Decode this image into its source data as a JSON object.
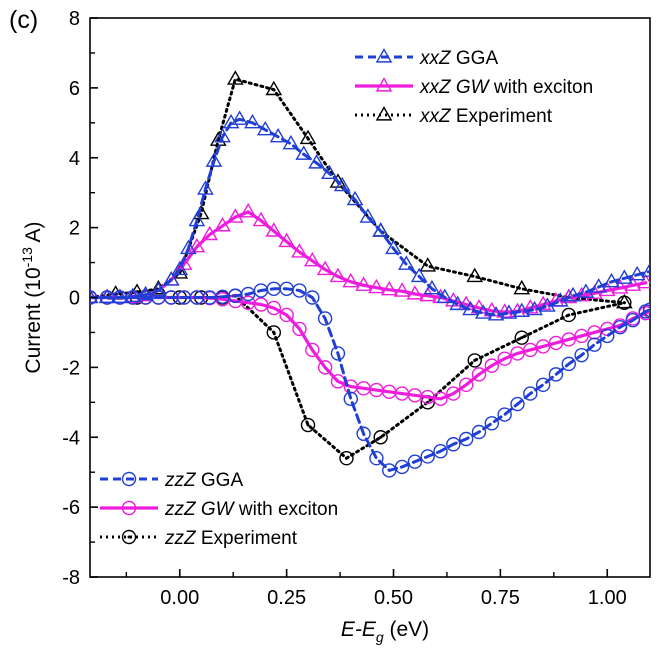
{
  "chart_data": {
    "type": "line",
    "panel_label": "(c)",
    "xlabel": {
      "base": "E",
      "dash": "-E",
      "sub": "g",
      "unit": " (eV)"
    },
    "ylabel": {
      "prefix": "Current (10",
      "exp": "-13",
      "suffix": " A)"
    },
    "xlim": [
      -0.21,
      1.1
    ],
    "ylim": [
      -8,
      8
    ],
    "xticks": [
      0.0,
      0.25,
      0.5,
      0.75,
      1.0
    ],
    "xtick_labels": [
      "0.00",
      "0.25",
      "0.50",
      "0.75",
      "1.00"
    ],
    "yticks": [
      -8,
      -6,
      -4,
      -2,
      0,
      2,
      4,
      6,
      8
    ],
    "ytick_labels": [
      "-8",
      "-6",
      "-4",
      "-2",
      "0",
      "2",
      "4",
      "6",
      "8"
    ],
    "legend_top": "top-right",
    "legend_bottom": "bottom-left",
    "series": [
      {
        "id": "xx-gga",
        "group": "top",
        "name_italic": "xxZ",
        "name_rest": " GGA",
        "name_rest_italic": "",
        "name_tail": "",
        "color": "#1f3fd6",
        "dash": "8,5",
        "marker": "triangle",
        "width": 3,
        "x": [
          -0.21,
          -0.17,
          -0.14,
          -0.11,
          -0.08,
          -0.05,
          -0.02,
          0.0,
          0.02,
          0.04,
          0.06,
          0.08,
          0.1,
          0.12,
          0.14,
          0.17,
          0.2,
          0.23,
          0.26,
          0.29,
          0.32,
          0.35,
          0.38,
          0.41,
          0.44,
          0.47,
          0.5,
          0.53,
          0.56,
          0.59,
          0.62,
          0.65,
          0.68,
          0.71,
          0.74,
          0.77,
          0.8,
          0.83,
          0.86,
          0.89,
          0.92,
          0.95,
          0.98,
          1.01,
          1.04,
          1.07,
          1.1
        ],
        "y": [
          0.0,
          0.0,
          0.0,
          0.03,
          0.08,
          0.2,
          0.5,
          0.8,
          1.4,
          2.2,
          3.1,
          3.9,
          4.6,
          5.0,
          5.1,
          5.0,
          4.8,
          4.6,
          4.4,
          4.1,
          3.85,
          3.55,
          3.2,
          2.8,
          2.3,
          1.9,
          1.4,
          0.95,
          0.6,
          0.25,
          0.0,
          -0.2,
          -0.35,
          -0.45,
          -0.5,
          -0.45,
          -0.4,
          -0.35,
          -0.25,
          -0.1,
          0.05,
          0.15,
          0.3,
          0.45,
          0.55,
          0.65,
          0.75
        ]
      },
      {
        "id": "xx-gw",
        "group": "top",
        "name_italic": "xxZ",
        "name_rest": " ",
        "name_rest_italic": "GW",
        "name_tail": " with exciton",
        "color": "#ee1cdc",
        "dash": "",
        "marker": "triangle",
        "width": 3.2,
        "x": [
          -0.21,
          -0.17,
          -0.14,
          -0.11,
          -0.08,
          -0.05,
          -0.02,
          0.01,
          0.04,
          0.07,
          0.1,
          0.13,
          0.16,
          0.19,
          0.22,
          0.25,
          0.28,
          0.31,
          0.34,
          0.37,
          0.4,
          0.43,
          0.46,
          0.49,
          0.52,
          0.55,
          0.58,
          0.61,
          0.64,
          0.67,
          0.7,
          0.73,
          0.76,
          0.79,
          0.82,
          0.85,
          0.88,
          0.91,
          0.94,
          0.97,
          1.0,
          1.03,
          1.06,
          1.09
        ],
        "y": [
          0.0,
          0.0,
          0.0,
          0.0,
          0.05,
          0.2,
          0.5,
          0.95,
          1.45,
          1.8,
          2.05,
          2.3,
          2.45,
          2.2,
          1.9,
          1.6,
          1.3,
          1.05,
          0.8,
          0.6,
          0.45,
          0.35,
          0.28,
          0.22,
          0.18,
          0.1,
          0.05,
          0.0,
          -0.1,
          -0.2,
          -0.3,
          -0.38,
          -0.42,
          -0.4,
          -0.3,
          -0.2,
          -0.1,
          0.0,
          0.05,
          0.12,
          0.2,
          0.27,
          0.35,
          0.42
        ]
      },
      {
        "id": "xx-exp",
        "group": "top",
        "name_italic": "xxZ",
        "name_rest": " Experiment",
        "name_rest_italic": "",
        "name_tail": "",
        "color": "#000000",
        "dash": "2,4",
        "marker": "triangle",
        "width": 3,
        "x": [
          -0.21,
          -0.15,
          -0.1,
          -0.05,
          0.0,
          0.05,
          0.09,
          0.13,
          0.22,
          0.3,
          0.37,
          0.47,
          0.58,
          0.69,
          0.8,
          0.91,
          1.04
        ],
        "y": [
          0.0,
          0.1,
          0.15,
          0.25,
          0.7,
          2.4,
          4.5,
          6.25,
          5.95,
          4.55,
          3.3,
          1.9,
          0.9,
          0.6,
          0.25,
          0.0,
          -0.15
        ]
      },
      {
        "id": "zz-gga",
        "group": "bottom",
        "name_italic": "zzZ",
        "name_rest": " GGA",
        "name_rest_italic": "",
        "name_tail": "",
        "color": "#1f3fd6",
        "dash": "8,5",
        "marker": "circle",
        "width": 3,
        "x": [
          -0.21,
          -0.17,
          -0.14,
          -0.11,
          -0.08,
          -0.05,
          -0.02,
          0.01,
          0.04,
          0.07,
          0.1,
          0.13,
          0.16,
          0.19,
          0.22,
          0.25,
          0.28,
          0.31,
          0.34,
          0.37,
          0.4,
          0.43,
          0.46,
          0.49,
          0.52,
          0.55,
          0.58,
          0.61,
          0.64,
          0.67,
          0.7,
          0.73,
          0.76,
          0.79,
          0.82,
          0.85,
          0.88,
          0.91,
          0.94,
          0.97,
          1.0,
          1.03,
          1.06,
          1.09,
          1.1
        ],
        "y": [
          0.0,
          0.0,
          0.0,
          0.0,
          0.0,
          0.0,
          0.0,
          0.0,
          0.0,
          0.0,
          0.02,
          0.05,
          0.1,
          0.2,
          0.25,
          0.25,
          0.2,
          0.0,
          -0.6,
          -1.6,
          -2.9,
          -3.9,
          -4.6,
          -4.95,
          -4.85,
          -4.7,
          -4.55,
          -4.4,
          -4.2,
          -4.05,
          -3.85,
          -3.6,
          -3.35,
          -3.05,
          -2.75,
          -2.5,
          -2.2,
          -1.9,
          -1.65,
          -1.35,
          -1.1,
          -0.85,
          -0.65,
          -0.4,
          -0.35
        ]
      },
      {
        "id": "zz-gw",
        "group": "bottom",
        "name_italic": "zzZ",
        "name_rest": " ",
        "name_rest_italic": "GW",
        "name_tail": " with exciton",
        "color": "#ee1cdc",
        "dash": "",
        "marker": "circle",
        "width": 3.2,
        "x": [
          -0.21,
          -0.17,
          -0.14,
          -0.11,
          -0.08,
          -0.05,
          -0.02,
          0.01,
          0.04,
          0.07,
          0.1,
          0.13,
          0.16,
          0.19,
          0.22,
          0.25,
          0.28,
          0.31,
          0.34,
          0.37,
          0.4,
          0.43,
          0.46,
          0.49,
          0.52,
          0.55,
          0.58,
          0.61,
          0.64,
          0.67,
          0.7,
          0.73,
          0.76,
          0.79,
          0.82,
          0.85,
          0.88,
          0.91,
          0.94,
          0.97,
          1.0,
          1.03,
          1.06,
          1.09,
          1.1
        ],
        "y": [
          0.0,
          0.0,
          0.0,
          0.0,
          0.0,
          0.0,
          0.0,
          0.0,
          0.0,
          -0.02,
          -0.05,
          -0.1,
          -0.15,
          -0.2,
          -0.3,
          -0.5,
          -0.9,
          -1.5,
          -2.0,
          -2.4,
          -2.55,
          -2.6,
          -2.65,
          -2.7,
          -2.75,
          -2.8,
          -2.85,
          -2.9,
          -2.75,
          -2.5,
          -2.2,
          -1.95,
          -1.75,
          -1.6,
          -1.5,
          -1.4,
          -1.3,
          -1.2,
          -1.1,
          -1.0,
          -0.9,
          -0.8,
          -0.6,
          -0.45,
          -0.4
        ]
      },
      {
        "id": "zz-exp",
        "group": "bottom",
        "name_italic": "zzZ",
        "name_rest": " Experiment",
        "name_rest_italic": "",
        "name_tail": "",
        "color": "#000000",
        "dash": "2,4",
        "marker": "circledot",
        "width": 3,
        "x": [
          -0.21,
          -0.1,
          0.0,
          0.05,
          0.1,
          0.13,
          0.22,
          0.3,
          0.39,
          0.47,
          0.58,
          0.69,
          0.8,
          0.91,
          1.04
        ],
        "y": [
          0.0,
          0.0,
          0.0,
          0.0,
          0.0,
          0.05,
          -1.0,
          -3.65,
          -4.6,
          -4.0,
          -3.0,
          -1.8,
          -1.15,
          -0.5,
          -0.15
        ]
      }
    ]
  }
}
